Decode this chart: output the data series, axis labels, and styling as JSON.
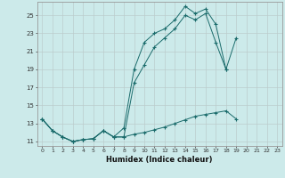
{
  "xlabel": "Humidex (Indice chaleur)",
  "bg_color": "#cceaea",
  "grid_color": "#bbcccc",
  "line_color": "#1a6b6b",
  "xlim": [
    -0.5,
    23.5
  ],
  "ylim": [
    10.5,
    26.5
  ],
  "xticks": [
    0,
    1,
    2,
    3,
    4,
    5,
    6,
    7,
    8,
    9,
    10,
    11,
    12,
    13,
    14,
    15,
    16,
    17,
    18,
    19,
    20,
    21,
    22,
    23
  ],
  "yticks": [
    11,
    13,
    15,
    17,
    19,
    21,
    23,
    25
  ],
  "line1_y": [
    13.5,
    12.2,
    11.5,
    11.0,
    11.2,
    11.3,
    12.2,
    11.5,
    12.5,
    19.0,
    22.0,
    23.0,
    23.5,
    24.5,
    26.0,
    25.2,
    25.7,
    24.0,
    19.0,
    22.5,
    null,
    null,
    null,
    null
  ],
  "line2_y": [
    13.5,
    12.2,
    11.5,
    11.0,
    11.2,
    11.3,
    12.2,
    11.5,
    11.5,
    17.5,
    19.5,
    21.5,
    22.5,
    23.5,
    25.0,
    24.5,
    25.2,
    22.0,
    19.0,
    null,
    null,
    null,
    null,
    null
  ],
  "line3_y": [
    13.5,
    12.2,
    11.5,
    11.0,
    11.2,
    11.3,
    12.2,
    11.5,
    11.5,
    11.8,
    12.0,
    12.3,
    12.6,
    13.0,
    13.4,
    13.8,
    14.0,
    14.2,
    14.4,
    13.5,
    null,
    null,
    null,
    null
  ]
}
